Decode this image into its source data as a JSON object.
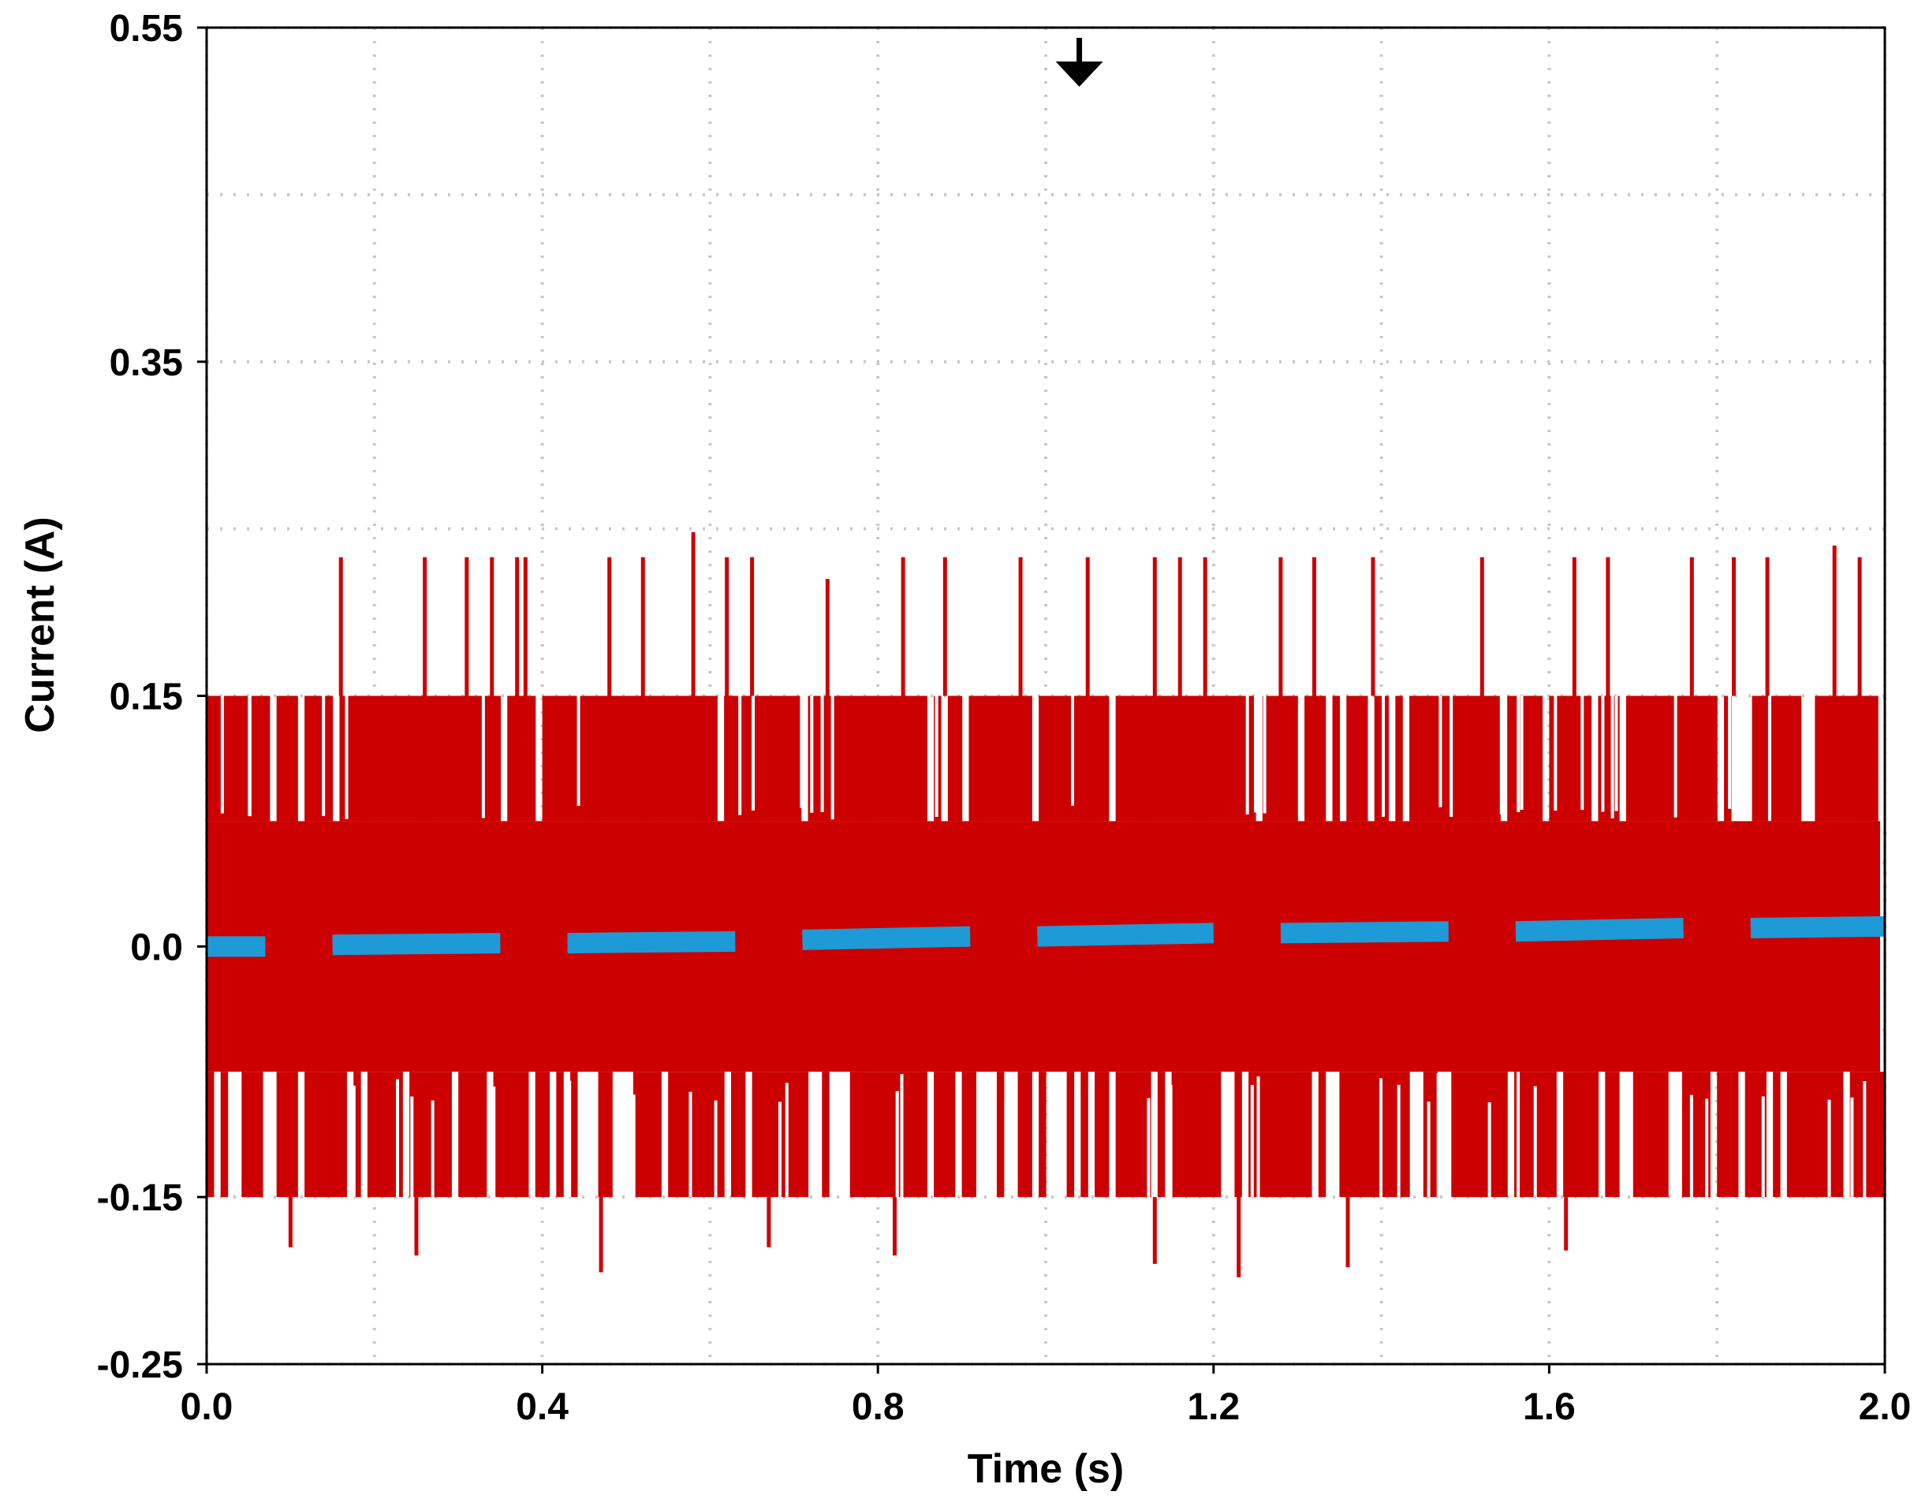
{
  "chart_data": {
    "type": "line",
    "title": "",
    "xlabel": "Time (s)",
    "ylabel": "Current (A)",
    "xlim": [
      0.0,
      2.0
    ],
    "ylim": [
      -0.25,
      0.55
    ],
    "x_ticks": [
      "0.0",
      "0.4",
      "0.8",
      "1.2",
      "1.6",
      "2.0"
    ],
    "x_tick_values": [
      0.0,
      0.4,
      0.8,
      1.2,
      1.6,
      2.0
    ],
    "y_ticks": [
      "0.55",
      "0.35",
      "0.15",
      "0.0",
      "-0.15",
      "-0.25"
    ],
    "y_tick_values": [
      0.55,
      0.35,
      0.15,
      0.0,
      -0.15,
      -0.25
    ],
    "grid": true,
    "grid_style": "dotted",
    "trigger_marker_x": 1.04,
    "series": [
      {
        "color": "#cc0000",
        "style": "noisy-square",
        "levels": [
          0.15,
          0.075,
          -0.075,
          -0.15
        ],
        "upper_spikes": [
          {
            "x": 0.16,
            "y": 0.233
          },
          {
            "x": 0.26,
            "y": 0.233
          },
          {
            "x": 0.31,
            "y": 0.233
          },
          {
            "x": 0.34,
            "y": 0.233
          },
          {
            "x": 0.37,
            "y": 0.233
          },
          {
            "x": 0.38,
            "y": 0.233
          },
          {
            "x": 0.48,
            "y": 0.233
          },
          {
            "x": 0.52,
            "y": 0.233
          },
          {
            "x": 0.58,
            "y": 0.248
          },
          {
            "x": 0.62,
            "y": 0.233
          },
          {
            "x": 0.65,
            "y": 0.233
          },
          {
            "x": 0.74,
            "y": 0.22
          },
          {
            "x": 0.83,
            "y": 0.233
          },
          {
            "x": 0.88,
            "y": 0.233
          },
          {
            "x": 0.97,
            "y": 0.233
          },
          {
            "x": 1.05,
            "y": 0.233
          },
          {
            "x": 1.13,
            "y": 0.233
          },
          {
            "x": 1.16,
            "y": 0.233
          },
          {
            "x": 1.19,
            "y": 0.233
          },
          {
            "x": 1.28,
            "y": 0.233
          },
          {
            "x": 1.32,
            "y": 0.233
          },
          {
            "x": 1.39,
            "y": 0.233
          },
          {
            "x": 1.52,
            "y": 0.233
          },
          {
            "x": 1.63,
            "y": 0.233
          },
          {
            "x": 1.67,
            "y": 0.233
          },
          {
            "x": 1.77,
            "y": 0.233
          },
          {
            "x": 1.82,
            "y": 0.233
          },
          {
            "x": 1.86,
            "y": 0.233
          },
          {
            "x": 1.94,
            "y": 0.24
          },
          {
            "x": 1.97,
            "y": 0.233
          }
        ],
        "lower_spikes": [
          {
            "x": 0.1,
            "y": -0.18
          },
          {
            "x": 0.25,
            "y": -0.185
          },
          {
            "x": 0.47,
            "y": -0.195
          },
          {
            "x": 0.67,
            "y": -0.18
          },
          {
            "x": 0.82,
            "y": -0.185
          },
          {
            "x": 1.13,
            "y": -0.19
          },
          {
            "x": 1.23,
            "y": -0.198
          },
          {
            "x": 1.36,
            "y": -0.192
          },
          {
            "x": 1.62,
            "y": -0.182
          }
        ]
      },
      {
        "color": "#1e9ad6",
        "style": "dashed-average",
        "segments": [
          {
            "x": [
              0.0,
              0.07
            ],
            "y": [
              0.0,
              0.0
            ]
          },
          {
            "x": [
              0.15,
              0.35
            ],
            "y": [
              0.001,
              0.002
            ]
          },
          {
            "x": [
              0.43,
              0.63
            ],
            "y": [
              0.002,
              0.003
            ]
          },
          {
            "x": [
              0.71,
              0.91
            ],
            "y": [
              0.004,
              0.006
            ]
          },
          {
            "x": [
              0.99,
              1.2
            ],
            "y": [
              0.006,
              0.008
            ]
          },
          {
            "x": [
              1.28,
              1.48
            ],
            "y": [
              0.008,
              0.009
            ]
          },
          {
            "x": [
              1.56,
              1.76
            ],
            "y": [
              0.009,
              0.011
            ]
          },
          {
            "x": [
              1.84,
              2.0
            ],
            "y": [
              0.011,
              0.012
            ]
          }
        ]
      }
    ]
  }
}
